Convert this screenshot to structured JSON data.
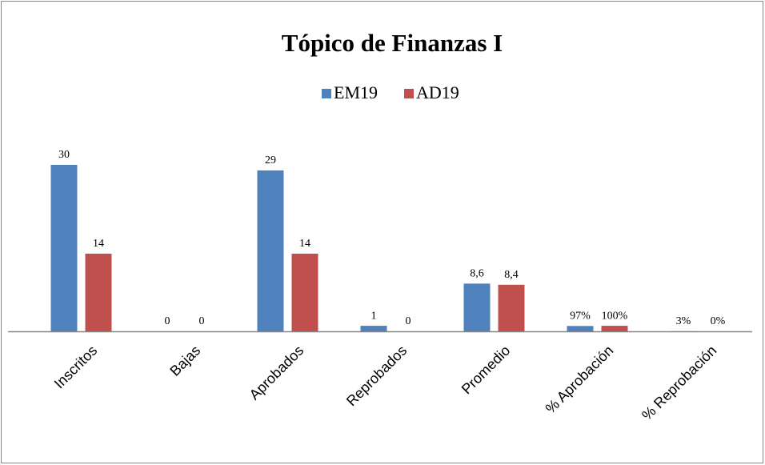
{
  "chart_data": {
    "type": "bar",
    "title": "Tópico de Finanzas  I",
    "categories": [
      "Inscritos",
      "Bajas",
      "Aprobados",
      "Reprobados",
      "Promedio",
      "% Aprobación",
      "% Reprobación"
    ],
    "series": [
      {
        "name": "EM19",
        "color": "#4f81bd",
        "values": [
          30,
          0,
          29,
          1,
          8.6,
          0.97,
          0.03
        ],
        "value_labels": [
          "30",
          "0",
          "29",
          "1",
          "8,6",
          "97%",
          "3%"
        ]
      },
      {
        "name": "AD19",
        "color": "#c0504d",
        "values": [
          14,
          0,
          14,
          0,
          8.4,
          1,
          0
        ],
        "value_labels": [
          "14",
          "0",
          "14",
          "0",
          "8,4",
          "100%",
          "0%"
        ]
      }
    ]
  }
}
